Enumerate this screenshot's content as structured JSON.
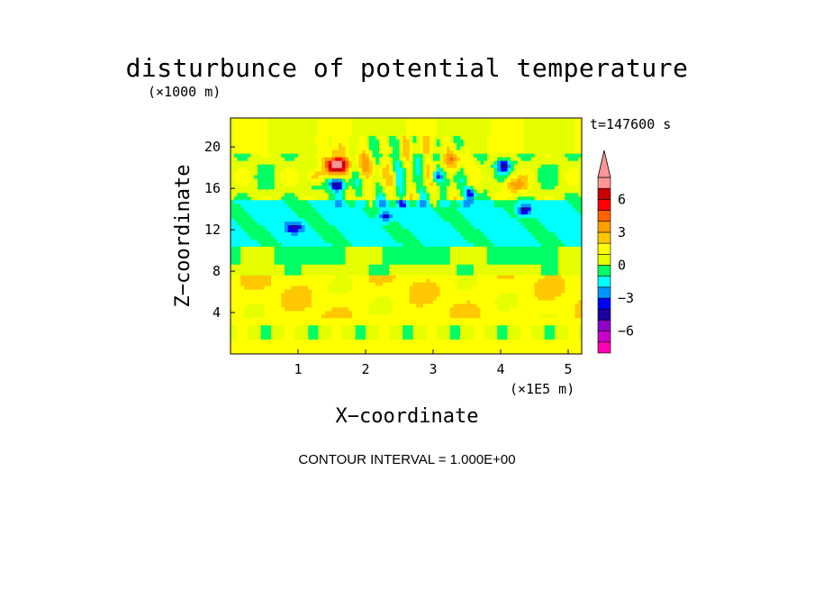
{
  "chart_data": {
    "type": "heatmap",
    "title": "disturbunce of potential temperature",
    "time_label": "t=147600 s",
    "xlabel": "X−coordinate",
    "ylabel": "Z−coordinate",
    "x_unit": "(×1E5 m)",
    "y_unit": "(×1000 m)",
    "xlim": [
      0,
      5.2
    ],
    "ylim": [
      0,
      22.8
    ],
    "x_ticks": [
      1,
      2,
      3,
      4,
      5
    ],
    "y_ticks": [
      4,
      8,
      12,
      16,
      20
    ],
    "contour_interval_text": "CONTOUR INTERVAL = 1.000E+00",
    "colorbar": {
      "levels": [
        -8,
        -7,
        -6,
        -5,
        -4,
        -3,
        -2,
        -1,
        0,
        1,
        2,
        3,
        4,
        5,
        6,
        7,
        8
      ],
      "tick_labels": [
        "6",
        "3",
        "0",
        "−3",
        "−6"
      ],
      "tick_values": [
        6,
        3,
        0,
        -3,
        -6
      ],
      "colors": [
        "#ff00b4",
        "#c800c8",
        "#8c00c8",
        "#1e00a0",
        "#0000ff",
        "#0096ff",
        "#00ffff",
        "#00ff64",
        "#e6ff00",
        "#ffff00",
        "#ffc800",
        "#ffa000",
        "#ff6400",
        "#ff0000",
        "#c80000",
        "#ff9696"
      ]
    },
    "features": [
      {
        "x": 1.57,
        "z": 18.3,
        "value": 6.5,
        "name": "warm anomaly"
      },
      {
        "x": 1.57,
        "z": 16.4,
        "value": -4.0,
        "name": "cold anomaly"
      },
      {
        "x": 3.05,
        "z": 17.2,
        "value": -3.0,
        "name": "cold anomaly"
      },
      {
        "x": 3.55,
        "z": 15.5,
        "value": -3.0,
        "name": "cold anomaly"
      },
      {
        "x": 4.05,
        "z": 18.2,
        "value": -3.0,
        "name": "cold anomaly"
      },
      {
        "x": 4.35,
        "z": 13.9,
        "value": -3.0,
        "name": "cold anomaly"
      }
    ]
  }
}
